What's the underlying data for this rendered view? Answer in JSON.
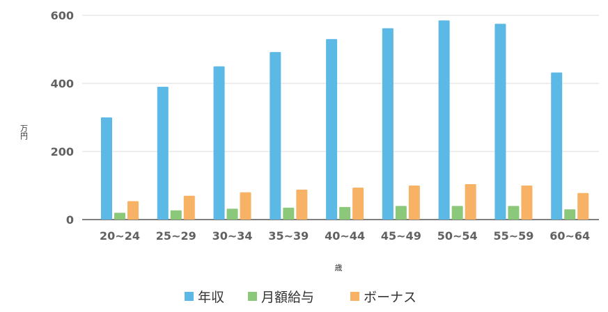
{
  "chart_data": {
    "type": "bar",
    "categories": [
      "20~24",
      "25~29",
      "30~34",
      "35~39",
      "40~44",
      "45~49",
      "50~54",
      "55~59",
      "60~64"
    ],
    "series": [
      {
        "name": "年収",
        "color": "#5cb8e4",
        "values": [
          300,
          390,
          450,
          492,
          530,
          562,
          585,
          575,
          432
        ]
      },
      {
        "name": "月額給与",
        "color": "#8cc879",
        "values": [
          20,
          27,
          32,
          35,
          37,
          40,
          40,
          40,
          30
        ]
      },
      {
        "name": "ボーナス",
        "color": "#f7b266",
        "values": [
          54,
          70,
          80,
          88,
          94,
          100,
          104,
          100,
          78
        ]
      }
    ],
    "y_ticks": [
      "600",
      "400",
      "200",
      "0"
    ],
    "ylim": [
      0,
      600
    ],
    "ylabel": "万円",
    "xlabel": "歳",
    "grid": true,
    "legend_position": "bottom"
  }
}
